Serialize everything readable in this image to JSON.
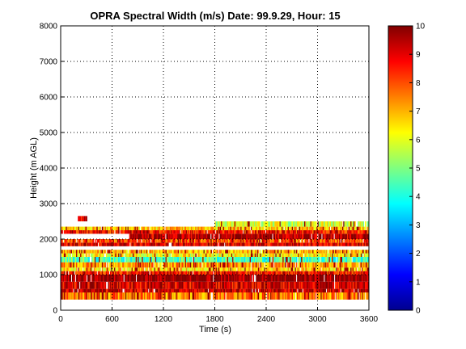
{
  "chart_data": {
    "type": "heatmap",
    "title": "OPRA Spectral Width (m/s)  Date: 99.9.29, Hour: 15",
    "xlabel": "Time (s)",
    "ylabel": "Height (m AGL)",
    "xlim": [
      0,
      3600
    ],
    "ylim": [
      0,
      8000
    ],
    "xticks": [
      "0",
      "600",
      "1200",
      "1800",
      "2400",
      "3000",
      "3600"
    ],
    "yticks": [
      "0",
      "1000",
      "2000",
      "3000",
      "4000",
      "5000",
      "6000",
      "7000",
      "8000"
    ],
    "grid": true,
    "colorbar": {
      "range": [
        0,
        10
      ],
      "ticks": [
        "0",
        "1",
        "2",
        "3",
        "4",
        "5",
        "6",
        "7",
        "8",
        "9",
        "10"
      ],
      "colormap": "jet"
    },
    "bands": [
      {
        "y": [
          300,
          500
        ],
        "x": [
          0,
          3600
        ],
        "value": 7.5
      },
      {
        "y": [
          500,
          600
        ],
        "x": [
          0,
          3600
        ],
        "value": 9.3
      },
      {
        "y": [
          600,
          800
        ],
        "x": [
          0,
          3600
        ],
        "value": 9.0
      },
      {
        "y": [
          800,
          1000
        ],
        "x": [
          0,
          3600
        ],
        "value": 9.8
      },
      {
        "y": [
          1000,
          1100
        ],
        "x": [
          0,
          3600
        ],
        "value": 8.6
      },
      {
        "y": [
          1100,
          1200
        ],
        "x": [
          0,
          3600
        ],
        "value": 6.5
      },
      {
        "y": [
          1200,
          1350
        ],
        "x": [
          0,
          3600
        ],
        "value": 7.2
      },
      {
        "y": [
          1350,
          1500
        ],
        "x": [
          0,
          3600
        ],
        "value": 4.5
      },
      {
        "y": [
          1500,
          1600
        ],
        "x": [
          0,
          3600
        ],
        "value": 6.2
      },
      {
        "y": [
          1600,
          1700
        ],
        "x": [
          0,
          3600
        ],
        "value": 7.0
      },
      {
        "y": [
          1800,
          1900
        ],
        "x": [
          0,
          3600
        ],
        "value": 9.0
      },
      {
        "y": [
          1900,
          2000
        ],
        "x": [
          0,
          3600
        ],
        "value": 8.0
      },
      {
        "y": [
          2000,
          2150
        ],
        "x": [
          800,
          3600
        ],
        "value": 9.4
      },
      {
        "y": [
          2150,
          2250
        ],
        "x": [
          0,
          3600
        ],
        "value": 8.5
      },
      {
        "y": [
          2250,
          2350
        ],
        "x": [
          0,
          3600
        ],
        "value": 6.8
      },
      {
        "y": [
          2350,
          2500
        ],
        "x": [
          1800,
          3600
        ],
        "value": 5.8
      },
      {
        "y": [
          2500,
          2650
        ],
        "x": [
          200,
          300
        ],
        "value": 9.0
      }
    ]
  }
}
